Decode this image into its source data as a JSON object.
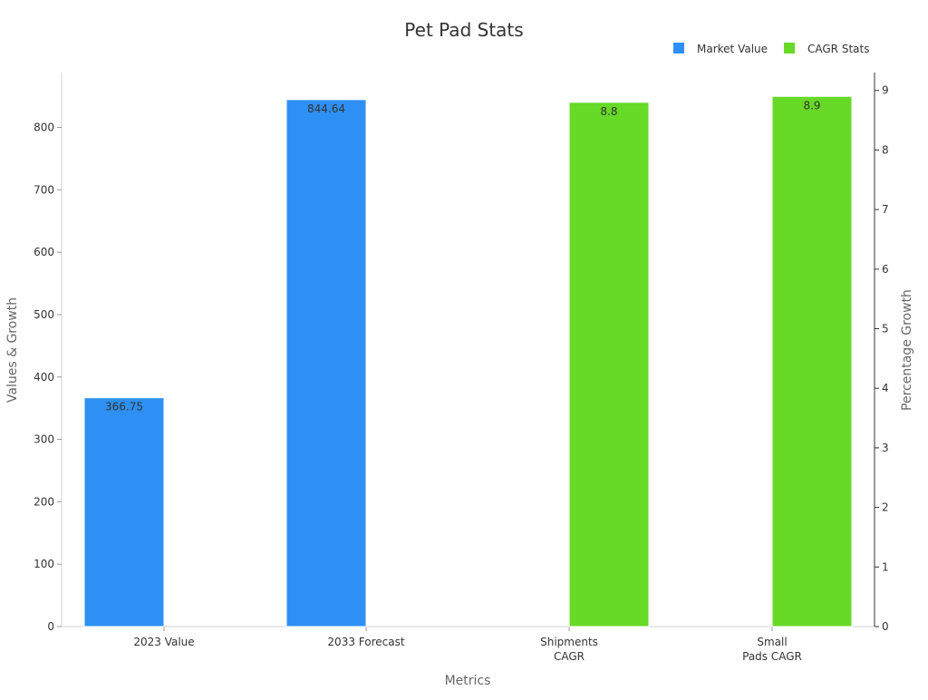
{
  "chart_data": {
    "type": "bar",
    "title": "Pet Pad Stats",
    "xlabel": "Metrics",
    "ylabel": "Values & Growth",
    "y2label": "Percentage Growth",
    "categories": [
      "2023 Value",
      "2033 Forecast",
      "Shipments CAGR",
      "Small Pads CAGR"
    ],
    "category_lines": [
      [
        "2023 Value"
      ],
      [
        "2033 Forecast"
      ],
      [
        "Shipments",
        "CAGR"
      ],
      [
        "Small",
        "Pads CAGR"
      ]
    ],
    "series": [
      {
        "name": "Market Value",
        "axis": "left",
        "color": "#2e90f4",
        "values": [
          366.75,
          844.64,
          null,
          null
        ],
        "labels": [
          "366.75",
          "844.64",
          "",
          ""
        ]
      },
      {
        "name": "CAGR Stats",
        "axis": "right",
        "color": "#67d927",
        "values": [
          null,
          null,
          8.8,
          8.9
        ],
        "labels": [
          "",
          "",
          "8.8",
          "8.9"
        ]
      }
    ],
    "ylim": [
      0,
      888
    ],
    "yticks": [
      0,
      100,
      200,
      300,
      400,
      500,
      600,
      700,
      800
    ],
    "y2lim": [
      0,
      9.3
    ],
    "y2ticks": [
      0,
      1,
      2,
      3,
      4,
      5,
      6,
      7,
      8,
      9
    ],
    "legend_position": "top-right",
    "grid": false
  }
}
